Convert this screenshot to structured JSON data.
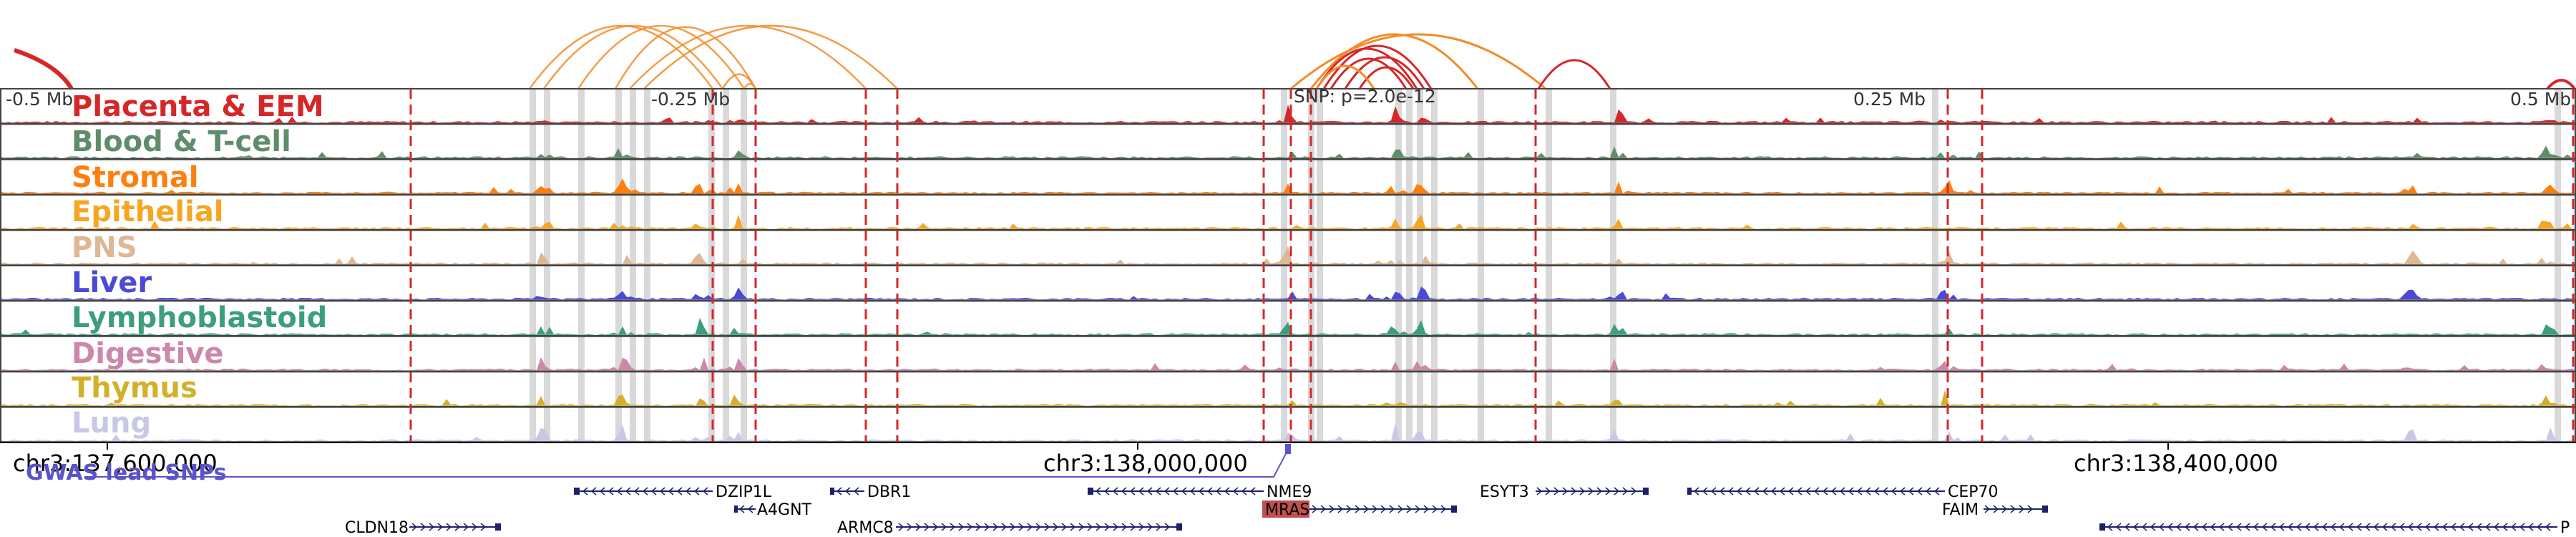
{
  "genome_view": {
    "offset_labels": [
      "-0.5 Mb",
      "-0.25 Mb",
      "0.25 Mb",
      "0.5 Mb"
    ],
    "snp_label": "SNP: p=2.0e-12",
    "tracks": [
      {
        "label": "Placenta & EEM",
        "color": "#d62728"
      },
      {
        "label": "Blood & T-cell",
        "color": "#5f8d6a"
      },
      {
        "label": "Stromal",
        "color": "#ff7f0e"
      },
      {
        "label": "Epithelial",
        "color": "#f5a623"
      },
      {
        "label": "PNS",
        "color": "#ddb896"
      },
      {
        "label": "Liver",
        "color": "#4a4ad6"
      },
      {
        "label": "Lymphoblastoid",
        "color": "#3c9e7a"
      },
      {
        "label": "Digestive",
        "color": "#cc88aa"
      },
      {
        "label": "Thymus",
        "color": "#d4b02a"
      },
      {
        "label": "Lung",
        "color": "#c8c8e6"
      }
    ],
    "coordinates": [
      "chr3:137,600,000",
      "chr3:138,000,000",
      "chr3:138,400,000"
    ],
    "gwas_label": "GWAS lead SNPs",
    "genes": [
      {
        "name": "DZIP1L",
        "strand": "-"
      },
      {
        "name": "DBR1",
        "strand": "-"
      },
      {
        "name": "NME9",
        "strand": "-"
      },
      {
        "name": "ESYT3",
        "strand": "+"
      },
      {
        "name": "CEP70",
        "strand": "-"
      },
      {
        "name": "A4GNT",
        "strand": "-"
      },
      {
        "name": "ARMC8",
        "strand": "+"
      },
      {
        "name": "MRAS",
        "strand": "+"
      },
      {
        "name": "FAIM",
        "strand": "+"
      },
      {
        "name": "CLDN18",
        "strand": "+"
      },
      {
        "name": "P",
        "strand": "-"
      }
    ],
    "colors": {
      "track_border": "#444444",
      "red_marker": "#d62728",
      "grey_highlight": "#d9d9d9",
      "gene": "#1f1f6e",
      "gwas": "#5b53c9",
      "mras_box": "#c0504d"
    }
  }
}
